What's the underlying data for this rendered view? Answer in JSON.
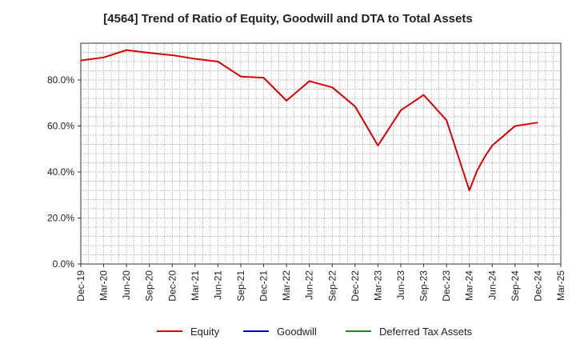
{
  "chart_data": {
    "type": "line",
    "title": "[4564]  Trend of Ratio of Equity, Goodwill and DTA to Total Assets",
    "x_ticks": [
      "Dec-19",
      "Mar-20",
      "Jun-20",
      "Sep-20",
      "Dec-20",
      "Mar-21",
      "Jun-21",
      "Sep-21",
      "Dec-21",
      "Mar-22",
      "Jun-22",
      "Sep-22",
      "Dec-22",
      "Mar-23",
      "Jun-23",
      "Sep-23",
      "Dec-23",
      "Mar-24",
      "Jun-24",
      "Sep-24",
      "Dec-24",
      "Mar-25"
    ],
    "y_ticks": [
      "0.0%",
      "20.0%",
      "40.0%",
      "60.0%",
      "80.0%"
    ],
    "ylim": [
      0,
      96
    ],
    "grid": true,
    "legend_position": "bottom",
    "series": [
      {
        "name": "Equity",
        "color": "#dd0000",
        "points": [
          {
            "x": "Dec-19",
            "y": 88.5
          },
          {
            "x": "Mar-20",
            "y": 89.8
          },
          {
            "x": "Jun-20",
            "y": 93.0
          },
          {
            "x": "Sep-20",
            "y": 91.8
          },
          {
            "x": "Dec-20",
            "y": 90.8
          },
          {
            "x": "Mar-21",
            "y": 89.2
          },
          {
            "x": "Jun-21",
            "y": 88.0
          },
          {
            "x": "Sep-21",
            "y": 81.5
          },
          {
            "x": "Dec-21",
            "y": 81.0
          },
          {
            "x": "Mar-22",
            "y": 71.0
          },
          {
            "x": "Jun-22",
            "y": 79.5
          },
          {
            "x": "Sep-22",
            "y": 76.8
          },
          {
            "x": "Dec-22",
            "y": 68.5
          },
          {
            "x": "Mar-23",
            "y": 51.5
          },
          {
            "x": "Jun-23",
            "y": 66.8
          },
          {
            "x": "Sep-23",
            "y": 73.5
          },
          {
            "x": "Dec-23",
            "y": 62.5
          },
          {
            "x": "Mar-24",
            "y": 32.0
          },
          {
            "x": "Apr-24",
            "y": 40.5
          },
          {
            "x": "May-24",
            "y": 46.5
          },
          {
            "x": "Jun-24",
            "y": 51.5
          },
          {
            "x": "Sep-24",
            "y": 60.0
          },
          {
            "x": "Dec-24",
            "y": 61.5
          }
        ]
      },
      {
        "name": "Goodwill",
        "color": "#0000cc",
        "points": []
      },
      {
        "name": "Deferred Tax Assets",
        "color": "#228B22",
        "points": []
      }
    ]
  }
}
